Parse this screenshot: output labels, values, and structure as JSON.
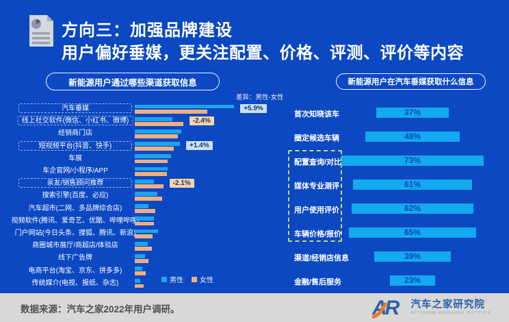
{
  "header": {
    "title_line1": "方向三：加强品牌建设",
    "title_line2": "用户偏好垂媒，更关注配置、价格、评测、评价等内容"
  },
  "colors": {
    "background": "#0B48C1",
    "male_bar": "#1FA3EC",
    "female_bar": "#F0AF80",
    "right_bar": "#12A9EE",
    "diff_positive_bg": "#C9E2F8",
    "diff_negative_bg": "#FAD2AC",
    "diff_text": "#17365C",
    "highlight_dash": "#C6D867",
    "footer_bg": "#D8D8D8",
    "logo_blue": "#2A62AE",
    "logo_orange": "#F07B1D"
  },
  "chart_data": [
    {
      "id": "acquisition-channels",
      "type": "bar",
      "orientation": "horizontal-grouped",
      "title": "新能源用户通过哪些渠道获取信息",
      "diff_note": "差异：男性-女性",
      "unit": "%",
      "xlim": [
        0,
        25
      ],
      "legend_position": "bottom",
      "categories": [
        "汽车垂媒",
        "线上社交软件(微信、小红书、微博)",
        "经销商门店",
        "短视频平台(抖音、快手)",
        "车展",
        "车企官网/小程序/APP",
        "亲友/销售顾问推荐",
        "搜索引擎(百度、必应)",
        "汽车超市(二网、多品牌综合店)",
        "视频软件(腾讯、爱奇艺、优酷、哔哩哔哩)",
        "门户网站(今日头条、搜狐、腾讯、新浪)",
        "商圈城市展厅/商超店/体验店",
        "线下广告牌",
        "电商平台(淘宝、京东、拼多多)",
        "传统媒介(电视、报纸、杂志)"
      ],
      "series": [
        {
          "name": "男性",
          "values": [
            22.0,
            8.3,
            10.3,
            10.0,
            8.0,
            7.3,
            4.2,
            5.0,
            3.0,
            4.2,
            5.1,
            2.9,
            2.3,
            1.7,
            1.2
          ]
        },
        {
          "name": "女性",
          "values": [
            16.1,
            10.7,
            9.5,
            8.6,
            7.3,
            7.1,
            6.3,
            6.0,
            4.5,
            4.2,
            3.9,
            3.8,
            3.0,
            2.4,
            2.0
          ]
        }
      ],
      "highlighted_categories": [
        0,
        1,
        3,
        6
      ],
      "diff_labels": [
        {
          "category_index": 0,
          "text": "+5.9%",
          "tone": "positive"
        },
        {
          "category_index": 1,
          "text": "-2.4%",
          "tone": "negative"
        },
        {
          "category_index": 3,
          "text": "+1.4%",
          "tone": "positive"
        },
        {
          "category_index": 6,
          "text": "-2.1%",
          "tone": "negative"
        }
      ]
    },
    {
      "id": "vertical-media-info",
      "type": "bar",
      "orientation": "horizontal-centered",
      "title": "新能源用户在汽车垂媒获取什么信息",
      "unit": "%",
      "categories": [
        "首次知晓该车",
        "圈定候选车辆",
        "配置查询/对比",
        "媒体专业测评",
        "用户使用评价",
        "车辆价格/报价",
        "渠道/经销店信息",
        "金融/售后服务"
      ],
      "values": [
        37,
        48,
        73,
        61,
        62,
        65,
        39,
        23
      ],
      "value_labels": [
        "37%",
        "48%",
        "73%",
        "61%",
        "62%",
        "65%",
        "39%",
        "23%"
      ],
      "highlighted_categories": [
        2,
        3,
        4,
        5
      ]
    }
  ],
  "legend": {
    "male": "男性",
    "female": "女性"
  },
  "footer": {
    "source": "数据来源：汽车之家2022年用户调研。",
    "logo_letters": "AR",
    "logo_name": "汽车之家研究院",
    "logo_subtitle": "AUTOHOME RESEARCH INSTITUTE"
  }
}
